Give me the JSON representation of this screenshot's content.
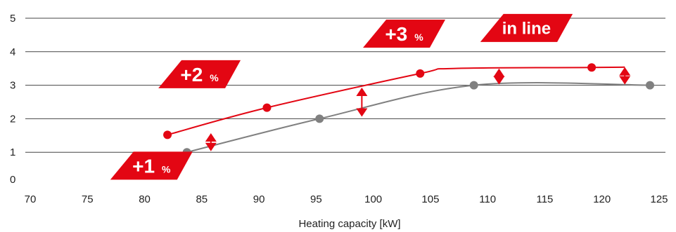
{
  "chart_data": {
    "type": "line",
    "title": "",
    "xlabel": "Heating capacity [kW]",
    "ylabel": "",
    "xlim": [
      70,
      125
    ],
    "ylim": [
      0,
      5
    ],
    "x_ticks": [
      70,
      75,
      80,
      85,
      90,
      95,
      100,
      105,
      110,
      115,
      120,
      125
    ],
    "y_ticks": [
      0,
      1,
      2,
      3,
      4,
      5
    ],
    "grid": "horizontal",
    "series": [
      {
        "color": "#e30613",
        "points": [
          [
            82,
            1.52
          ],
          [
            90.7,
            2.33
          ],
          [
            104.1,
            3.35
          ],
          [
            107,
            3.5
          ],
          [
            119.1,
            3.53
          ],
          [
            122,
            3.54
          ]
        ],
        "markers": [
          [
            82,
            1.52
          ],
          [
            90.7,
            2.33
          ],
          [
            104.1,
            3.35
          ],
          [
            119.1,
            3.53
          ]
        ]
      },
      {
        "color": "#808080",
        "points": [
          [
            83.7,
            1.0
          ],
          [
            95.3,
            2.0
          ],
          [
            108.8,
            3.0
          ],
          [
            124.2,
            3.0
          ]
        ],
        "markers": [
          [
            83.7,
            1.0
          ],
          [
            95.3,
            2.0
          ],
          [
            108.8,
            3.0
          ],
          [
            124.2,
            3.0
          ]
        ]
      }
    ],
    "arrows": [
      {
        "x": 85.8,
        "y1": 1.03,
        "y2": 1.57
      },
      {
        "x": 99.0,
        "y1": 2.06,
        "y2": 2.93
      },
      {
        "x": 111.0,
        "y1": 3.02,
        "y2": 3.5
      },
      {
        "x": 122.0,
        "y1": 3.02,
        "y2": 3.54
      }
    ],
    "annotations": [
      {
        "main": "+1",
        "unit": "%",
        "x": 80.6,
        "y": 0.6
      },
      {
        "main": "+2",
        "unit": "%",
        "x": 84.8,
        "y": 3.33
      },
      {
        "main": "+3",
        "unit": "%",
        "x": 102.7,
        "y": 4.54
      },
      {
        "main": "in line",
        "unit": "",
        "x": 113.4,
        "y": 4.71
      }
    ],
    "colors": {
      "accent": "#e30613",
      "secondary": "#808080",
      "grid": "#444444",
      "text": "#222222"
    }
  }
}
